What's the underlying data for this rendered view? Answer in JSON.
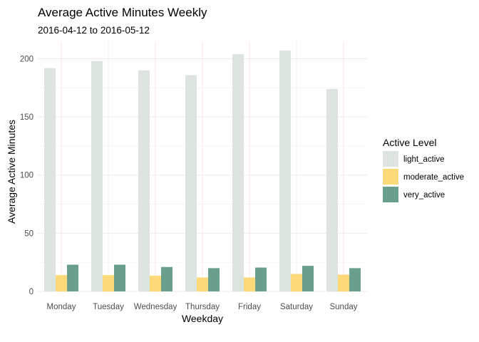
{
  "chart_data": {
    "type": "bar",
    "title": "Average Active Minutes Weekly",
    "subtitle": "2016-04-12 to 2016-05-12",
    "xlabel": "Weekday",
    "ylabel": "Average Active Minutes",
    "categories": [
      "Monday",
      "Tuesday",
      "Wednesday",
      "Thursday",
      "Friday",
      "Saturday",
      "Sunday"
    ],
    "ylim": [
      0,
      215
    ],
    "yticks": [
      0,
      50,
      100,
      150,
      200
    ],
    "grid": true,
    "legend": {
      "title": "Active Level",
      "position": "right"
    },
    "series": [
      {
        "name": "light_active",
        "color": "#dde4df",
        "values": [
          192,
          198,
          190,
          186,
          204,
          207,
          174
        ]
      },
      {
        "name": "moderate_active",
        "color": "#fdd97a",
        "values": [
          14,
          14,
          13.5,
          12,
          12,
          15,
          14.5
        ]
      },
      {
        "name": "very_active",
        "color": "#6a9e8d",
        "values": [
          23,
          23,
          21,
          20,
          20.5,
          22,
          20
        ]
      }
    ]
  }
}
